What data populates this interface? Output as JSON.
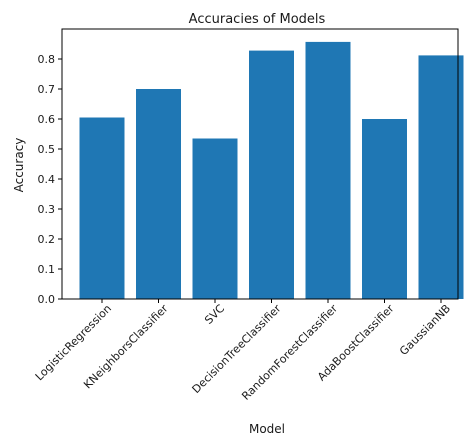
{
  "chart_data": {
    "type": "bar",
    "title": "Accuracies of Models",
    "xlabel": "Model",
    "ylabel": "Accuracy",
    "categories": [
      "LogisticRegression",
      "KNeighborsClassifier",
      "SVC",
      "DecisionTreeClassifier",
      "RandomForestClassifier",
      "AdaBoostClassifier",
      "GaussianNB"
    ],
    "values": [
      0.605,
      0.7,
      0.535,
      0.828,
      0.857,
      0.6,
      0.812
    ],
    "ylim": [
      0,
      0.9
    ],
    "yticks": [
      0.0,
      0.1,
      0.2,
      0.3,
      0.4,
      0.5,
      0.6,
      0.7,
      0.8
    ],
    "ytick_labels": [
      "0.0",
      "0.1",
      "0.2",
      "0.3",
      "0.4",
      "0.5",
      "0.6",
      "0.7",
      "0.8"
    ],
    "grid": false,
    "bar_color": "#1f77b4"
  }
}
